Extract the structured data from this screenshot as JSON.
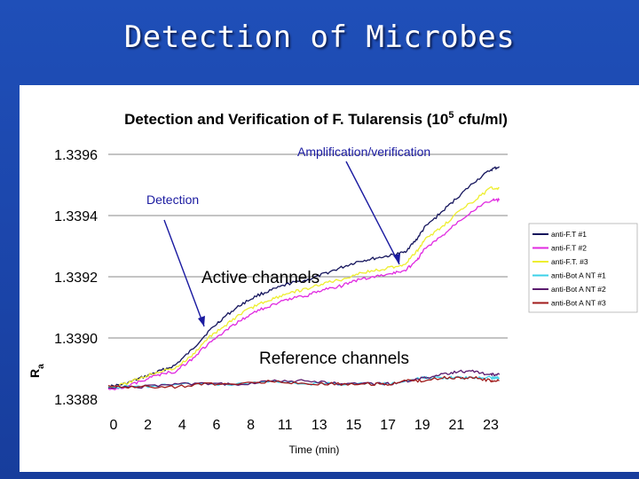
{
  "slide": {
    "title": "Detection of Microbes"
  },
  "chart_data": {
    "type": "line",
    "title": "Detection and Verification of F. Tularensis (10",
    "title_sup": "5",
    "title_tail": " cfu/ml)",
    "xlabel": "Time (min)",
    "ylabel": "R",
    "ylabel_sub": "a",
    "x_ticks": [
      "0",
      "2",
      "4",
      "6",
      "8",
      "11",
      "13",
      "15",
      "17",
      "19",
      "21",
      "23"
    ],
    "y_ticks": [
      "1.3388",
      "1.3390",
      "1.3392",
      "1.3394",
      "1.3396"
    ],
    "ylim": [
      1.3388,
      1.3396
    ],
    "xlim": [
      0,
      24
    ],
    "grid": "horizontal",
    "legend_position": "right",
    "annotations": {
      "amplification": "Amplification/verification",
      "detection": "Detection",
      "active": "Active channels",
      "reference": "Reference channels"
    },
    "series": [
      {
        "name": "anti-F.T #1",
        "color": "#14145c",
        "x": [
          0,
          1,
          2,
          3,
          4,
          5,
          6,
          7,
          8,
          9,
          10,
          11,
          12,
          13,
          14,
          15,
          16,
          17,
          17.8,
          18.5,
          19,
          20,
          21,
          22,
          23,
          23.5
        ],
        "y": [
          1.33884,
          1.33885,
          1.33887,
          1.33889,
          1.33891,
          1.33896,
          1.33902,
          1.33907,
          1.33911,
          1.33914,
          1.33916,
          1.33918,
          1.33919,
          1.33921,
          1.33923,
          1.33925,
          1.33926,
          1.33927,
          1.33928,
          1.33932,
          1.33936,
          1.33941,
          1.33946,
          1.33951,
          1.33955,
          1.33956
        ]
      },
      {
        "name": "anti-F.T #2",
        "color": "#e02ae0",
        "x": [
          0,
          1,
          2,
          3,
          4,
          5,
          6,
          7,
          8,
          9,
          10,
          11,
          12,
          13,
          14,
          15,
          16,
          17,
          17.8,
          18.5,
          19,
          20,
          21,
          22,
          23,
          23.5
        ],
        "y": [
          1.33883,
          1.33884,
          1.33886,
          1.33888,
          1.33889,
          1.33893,
          1.33898,
          1.33902,
          1.33906,
          1.33909,
          1.33911,
          1.33913,
          1.33914,
          1.33916,
          1.33917,
          1.33919,
          1.3392,
          1.33921,
          1.33922,
          1.33925,
          1.33929,
          1.33933,
          1.33938,
          1.33942,
          1.33945,
          1.33945
        ]
      },
      {
        "name": "anti-F.T. #3",
        "color": "#eeee30",
        "x": [
          0,
          1,
          2,
          3,
          4,
          5,
          6,
          7,
          8,
          9,
          10,
          11,
          12,
          13,
          14,
          15,
          16,
          17,
          17.8,
          18.5,
          19,
          20,
          21,
          22,
          23,
          23.5
        ],
        "y": [
          1.33884,
          1.33885,
          1.33887,
          1.33889,
          1.3389,
          1.33894,
          1.339,
          1.33904,
          1.33908,
          1.33911,
          1.33913,
          1.33915,
          1.33916,
          1.33918,
          1.33919,
          1.33921,
          1.33922,
          1.33923,
          1.33924,
          1.33928,
          1.33932,
          1.33936,
          1.33941,
          1.33945,
          1.33949,
          1.33949
        ]
      },
      {
        "name": "anti-Bot A NT #1",
        "color": "#3bd0e8",
        "x": [
          0,
          2,
          4,
          6,
          8,
          10,
          12,
          14,
          16,
          17,
          18,
          19,
          20,
          21,
          22,
          23,
          23.5
        ],
        "y": [
          1.33884,
          1.33884,
          1.33885,
          1.33885,
          1.33885,
          1.33886,
          1.33885,
          1.33885,
          1.33885,
          1.33885,
          1.33886,
          1.33887,
          1.33887,
          1.33887,
          1.33887,
          1.33887,
          1.33887
        ]
      },
      {
        "name": "anti-Bot A NT #2",
        "color": "#5a1a6e",
        "x": [
          0,
          2,
          4,
          6,
          8,
          10,
          12,
          14,
          16,
          17,
          18,
          19,
          20,
          21,
          22,
          23,
          23.5
        ],
        "y": [
          1.33884,
          1.33884,
          1.33885,
          1.33885,
          1.33885,
          1.33886,
          1.33886,
          1.33885,
          1.33885,
          1.33885,
          1.33886,
          1.33887,
          1.33888,
          1.33889,
          1.33889,
          1.33888,
          1.33888
        ]
      },
      {
        "name": "anti-Bot A NT #3",
        "color": "#a01a1a",
        "x": [
          0,
          2,
          4,
          6,
          8,
          10,
          12,
          14,
          16,
          17,
          18,
          19,
          20,
          21,
          22,
          23,
          23.5
        ],
        "y": [
          1.33884,
          1.33884,
          1.33884,
          1.33885,
          1.33885,
          1.33886,
          1.33885,
          1.33885,
          1.33885,
          1.33885,
          1.33886,
          1.33886,
          1.33887,
          1.33887,
          1.33887,
          1.33886,
          1.33886
        ]
      }
    ]
  }
}
